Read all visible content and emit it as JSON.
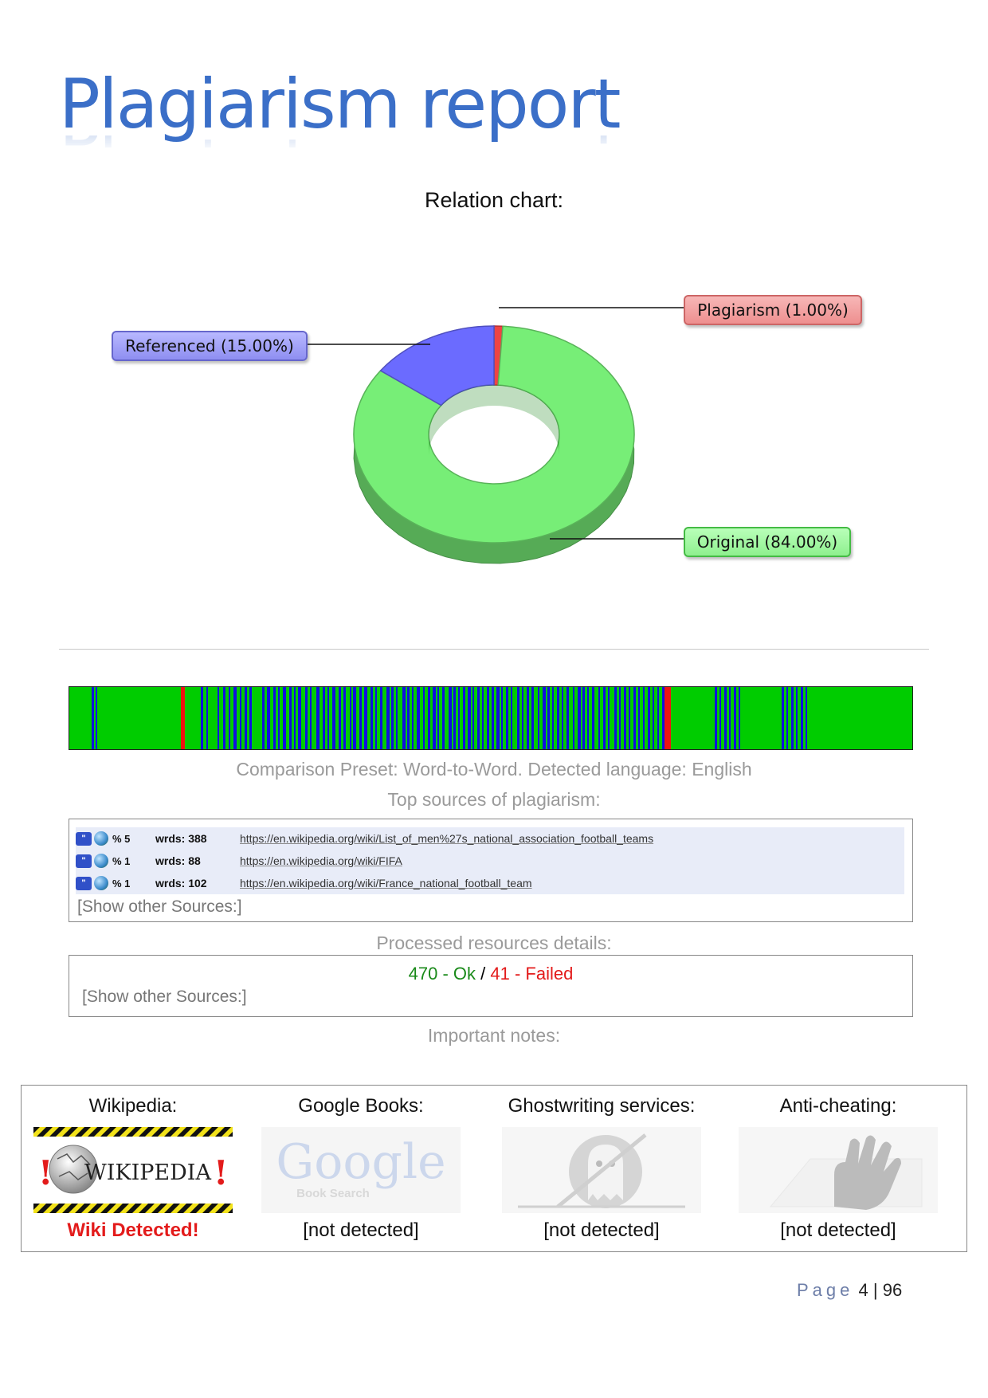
{
  "header": {
    "title": "Plagiarism report"
  },
  "chart_data": {
    "type": "pie",
    "title": "Relation chart:",
    "categories": [
      "Plagiarism",
      "Referenced",
      "Original"
    ],
    "values": [
      1.0,
      15.0,
      84.0
    ],
    "labels": [
      "Plagiarism (1.00%)",
      "Referenced (15.00%)",
      "Original (84.00%)"
    ],
    "colors": [
      "#ee4444",
      "#6b6bff",
      "#77ee77"
    ],
    "style": "3d-donut"
  },
  "comparison": {
    "preset": "Comparison Preset: Word-to-Word. Detected language: English",
    "top_sources_title": "Top sources of plagiarism:"
  },
  "sources": [
    {
      "pct": "% 5",
      "words": "wrds: 388",
      "url": "https://en.wikipedia.org/wiki/List_of_men%27s_national_association_football_teams"
    },
    {
      "pct": "% 1",
      "words": "wrds: 88",
      "url": "https://en.wikipedia.org/wiki/FIFA"
    },
    {
      "pct": "% 1",
      "words": "wrds: 102",
      "url": "https://en.wikipedia.org/wiki/France_national_football_team"
    }
  ],
  "show_other_sources": "[Show other Sources:]",
  "processed": {
    "title": "Processed resources details:",
    "ok": "470 - Ok",
    "sep": " / ",
    "failed": "41 - Failed",
    "show_other": "[Show other Sources:]"
  },
  "notes": {
    "title": "Important notes:",
    "items": [
      {
        "label": "Wikipedia:",
        "status": "Wiki Detected!",
        "logo_text": "WIKIPEDIA"
      },
      {
        "label": "Google Books:",
        "status": "[not detected]",
        "logo_text": "Google",
        "logo_sub": "Book Search"
      },
      {
        "label": "Ghostwriting services:",
        "status": "[not detected]"
      },
      {
        "label": "Anti-cheating:",
        "status": "[not detected]"
      }
    ]
  },
  "barcode": {
    "colors": {
      "original": "#00cc00",
      "referenced": "#1010e0",
      "plagiarism": "#ee1111"
    }
  },
  "footer": {
    "page_word": "Page",
    "page_num": "4",
    "sep": " | ",
    "total": "96"
  }
}
